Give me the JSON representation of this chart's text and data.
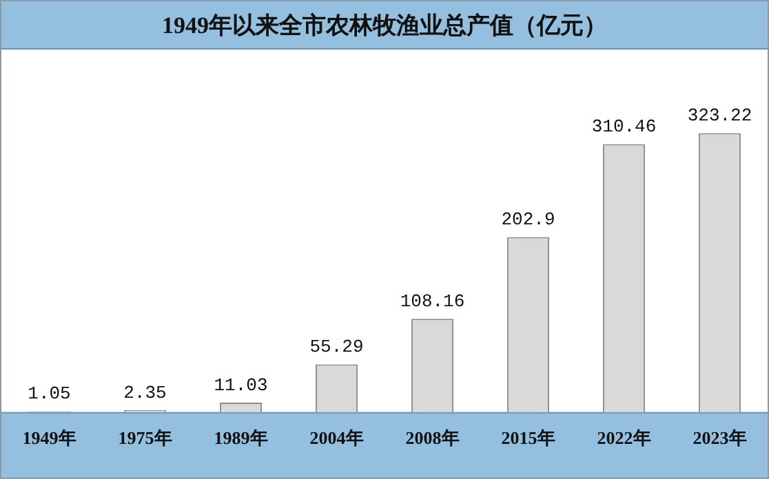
{
  "chart_data": {
    "type": "bar",
    "title": "1949年以来全市农林牧渔业总产值（亿元）",
    "categories": [
      "1949年",
      "1975年",
      "1989年",
      "2004年",
      "2008年",
      "2015年",
      "2022年",
      "2023年"
    ],
    "values": [
      1.05,
      2.35,
      11.03,
      55.29,
      108.16,
      202.9,
      310.46,
      323.22
    ],
    "color": "#d9d9d9",
    "data_labels": true,
    "grid": false,
    "legend": false
  }
}
